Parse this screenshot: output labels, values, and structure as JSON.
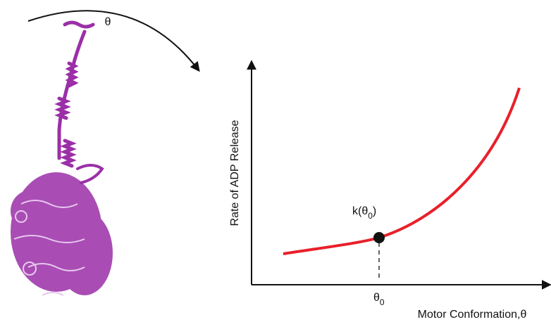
{
  "rotation_label": "θ",
  "y_axis_label": "Rate of ADP Release",
  "x_axis_label": "Motor Conformation,θ",
  "point_label": {
    "prefix": "k(θ",
    "sub": "0",
    "suffix": ")"
  },
  "x_marker_label": {
    "base": "θ",
    "sub": "0"
  }
}
